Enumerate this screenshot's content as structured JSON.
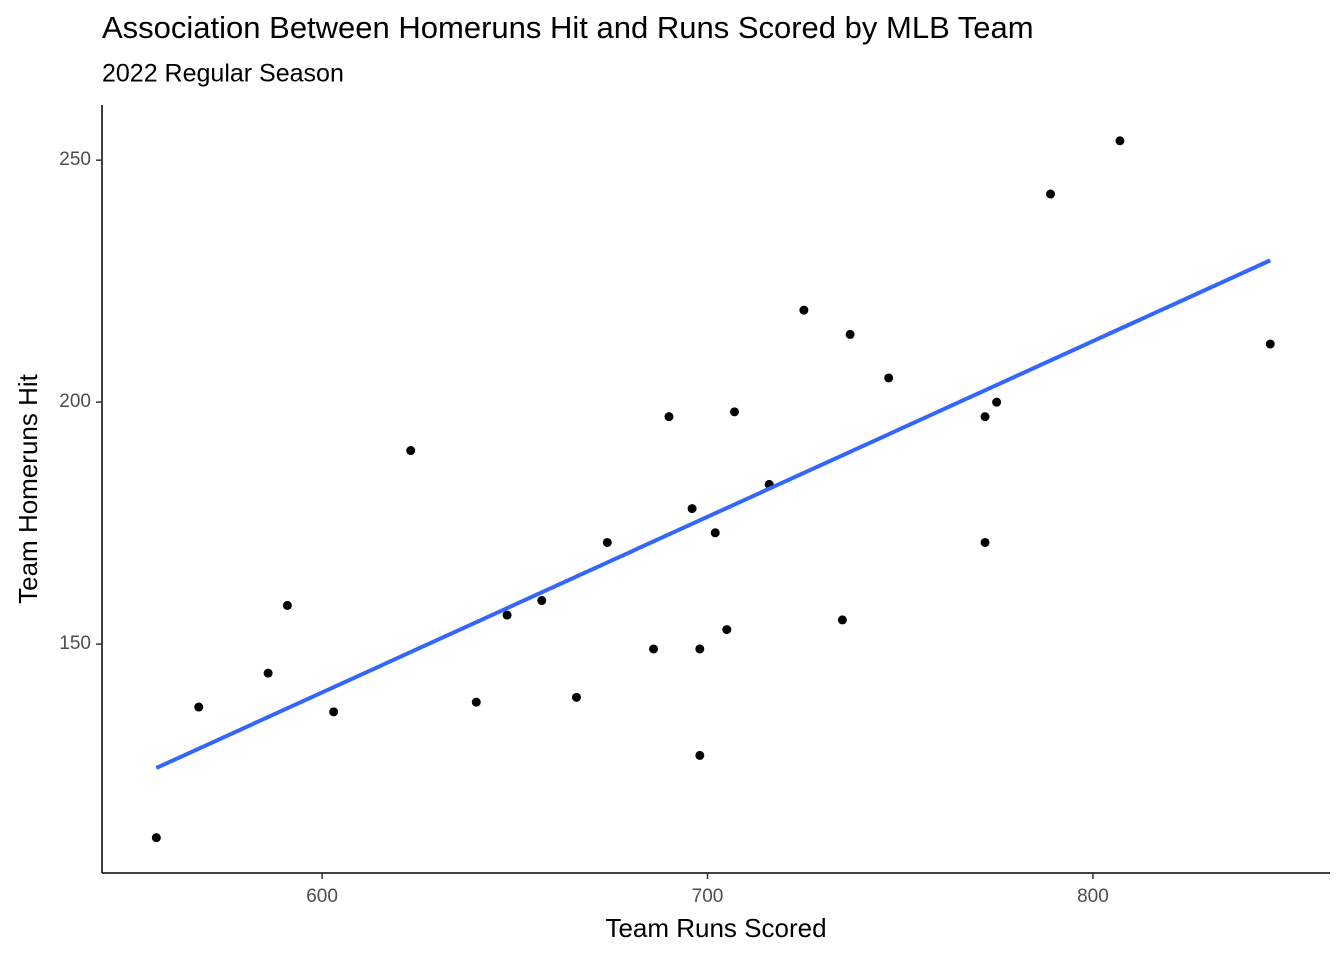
{
  "chart_data": {
    "type": "scatter",
    "title": "Association Between Homeruns Hit and Runs Scored by MLB Team",
    "subtitle": "2022 Regular Season",
    "x_label": "Team Runs Scored",
    "y_label": "Team Homeruns Hit",
    "x": [
      557,
      568,
      586,
      591,
      603,
      623,
      640,
      648,
      657,
      666,
      674,
      686,
      690,
      696,
      698,
      698,
      702,
      705,
      707,
      716,
      725,
      735,
      737,
      747,
      772,
      772,
      775,
      789,
      807,
      846
    ],
    "values": [
      110,
      137,
      144,
      158,
      136,
      190,
      138,
      156,
      159,
      139,
      171,
      149,
      197,
      178,
      149,
      127,
      173,
      153,
      198,
      183,
      219,
      155,
      214,
      205,
      197,
      171,
      200,
      243,
      254,
      212
    ],
    "color": "#000000",
    "trend_line": {
      "x": [
        557,
        846
      ],
      "y": [
        124.4,
        229.3
      ],
      "color": "#3366ff"
    },
    "xlim": [
      542.9,
      861.5
    ],
    "xticks": [
      600,
      700,
      800
    ],
    "ylim": [
      102.7,
      261.4
    ],
    "yticks": [
      150,
      200,
      250
    ],
    "grid": false
  }
}
